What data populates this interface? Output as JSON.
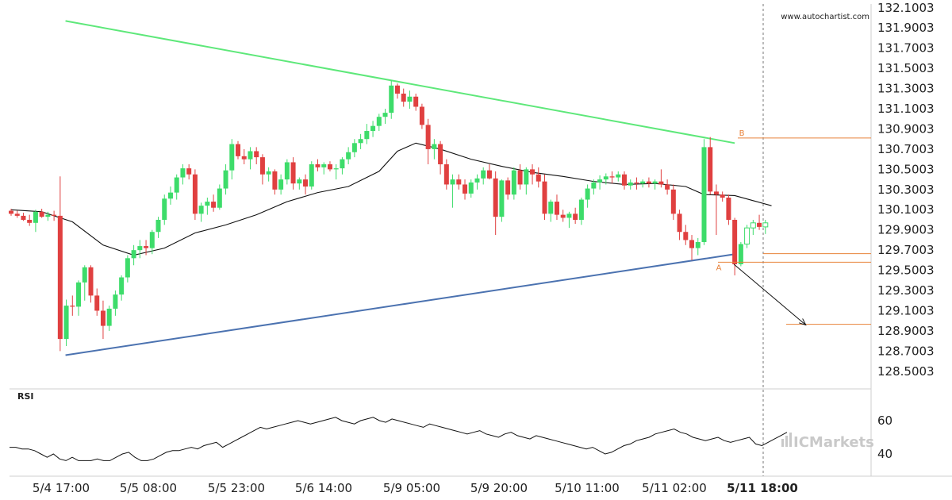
{
  "watermark": "www.autochartist.com",
  "logo": "ICMarkets",
  "rsi_label": "RSI",
  "point_labels": {
    "a": "A",
    "b": "B"
  },
  "colors": {
    "up": "#3ddc6a",
    "down": "#e04040",
    "resistance": "#5ee87a",
    "support": "#4b72b0",
    "level": "#e8823a",
    "ma": "#111111"
  },
  "chart_data": {
    "type": "candlestick",
    "title": "",
    "x_ticks": [
      "5/4 17:00",
      "5/5 08:00",
      "5/5 23:00",
      "5/6 14:00",
      "5/9 05:00",
      "5/9 20:00",
      "5/10 11:00",
      "5/11 02:00",
      "5/11 18:00"
    ],
    "y_ticks": [
      "132.1003",
      "131.9003",
      "131.7003",
      "131.5003",
      "131.3003",
      "131.1003",
      "130.9003",
      "130.7003",
      "130.5003",
      "130.3003",
      "130.1003",
      "129.9003",
      "129.7003",
      "129.5003",
      "129.3003",
      "129.1003",
      "128.9003",
      "128.7003",
      "128.5003"
    ],
    "ylim": [
      128.42,
      132.13
    ],
    "rsi_ticks": [
      "60",
      "40"
    ],
    "candles_ohlc": [
      [
        130.09,
        130.11,
        130.04,
        130.06
      ],
      [
        130.06,
        130.09,
        130.02,
        130.04
      ],
      [
        130.04,
        130.07,
        129.99,
        130.0
      ],
      [
        130.0,
        130.05,
        129.94,
        129.97
      ],
      [
        129.97,
        130.1,
        129.88,
        130.08
      ],
      [
        130.08,
        130.11,
        130.02,
        130.03
      ],
      [
        130.03,
        130.08,
        129.99,
        130.05
      ],
      [
        130.05,
        130.09,
        129.99,
        130.04
      ],
      [
        130.04,
        130.43,
        128.7,
        128.82
      ],
      [
        128.82,
        129.21,
        128.75,
        129.15
      ],
      [
        129.15,
        129.25,
        129.05,
        129.14
      ],
      [
        129.14,
        129.4,
        129.05,
        129.38
      ],
      [
        129.38,
        129.55,
        129.2,
        129.53
      ],
      [
        129.53,
        129.55,
        129.18,
        129.25
      ],
      [
        129.25,
        129.32,
        129.05,
        129.1
      ],
      [
        129.1,
        129.2,
        128.82,
        128.95
      ],
      [
        128.95,
        129.15,
        128.9,
        129.12
      ],
      [
        129.12,
        129.3,
        129.05,
        129.26
      ],
      [
        129.26,
        129.45,
        129.2,
        129.43
      ],
      [
        129.43,
        129.65,
        129.38,
        129.62
      ],
      [
        129.62,
        129.75,
        129.55,
        129.7
      ],
      [
        129.7,
        129.8,
        129.62,
        129.74
      ],
      [
        129.74,
        129.8,
        129.65,
        129.72
      ],
      [
        129.72,
        129.9,
        129.66,
        129.88
      ],
      [
        129.88,
        130.03,
        129.82,
        130.0
      ],
      [
        130.0,
        130.25,
        129.95,
        130.21
      ],
      [
        130.21,
        130.33,
        130.15,
        130.27
      ],
      [
        130.27,
        130.45,
        130.2,
        130.42
      ],
      [
        130.42,
        130.55,
        130.35,
        130.51
      ],
      [
        130.51,
        130.55,
        130.4,
        130.45
      ],
      [
        130.45,
        130.5,
        130.0,
        130.06
      ],
      [
        130.06,
        130.17,
        129.98,
        130.14
      ],
      [
        130.14,
        130.22,
        130.05,
        130.18
      ],
      [
        130.18,
        130.25,
        130.08,
        130.12
      ],
      [
        130.12,
        130.35,
        130.1,
        130.31
      ],
      [
        130.31,
        130.55,
        130.25,
        130.49
      ],
      [
        130.49,
        130.8,
        130.4,
        130.75
      ],
      [
        130.75,
        130.78,
        130.6,
        130.63
      ],
      [
        130.63,
        130.7,
        130.55,
        130.6
      ],
      [
        130.6,
        130.72,
        130.5,
        130.68
      ],
      [
        130.68,
        130.72,
        130.55,
        130.62
      ],
      [
        130.62,
        130.65,
        130.35,
        130.45
      ],
      [
        130.45,
        130.52,
        130.38,
        130.48
      ],
      [
        130.48,
        130.5,
        130.25,
        130.3
      ],
      [
        130.3,
        130.45,
        130.25,
        130.4
      ],
      [
        130.4,
        130.6,
        130.35,
        130.57
      ],
      [
        130.57,
        130.62,
        130.3,
        130.36
      ],
      [
        130.36,
        130.42,
        130.3,
        130.4
      ],
      [
        130.4,
        130.45,
        130.25,
        130.33
      ],
      [
        130.33,
        130.58,
        130.3,
        130.55
      ],
      [
        130.55,
        130.6,
        130.48,
        130.52
      ],
      [
        130.52,
        130.57,
        130.45,
        130.55
      ],
      [
        130.55,
        130.58,
        130.48,
        130.5
      ],
      [
        130.5,
        130.55,
        130.4,
        130.51
      ],
      [
        130.51,
        130.62,
        130.45,
        130.6
      ],
      [
        130.6,
        130.72,
        130.55,
        130.67
      ],
      [
        130.67,
        130.8,
        130.62,
        130.76
      ],
      [
        130.76,
        130.85,
        130.7,
        130.8
      ],
      [
        130.8,
        130.95,
        130.75,
        130.88
      ],
      [
        130.88,
        130.98,
        130.82,
        130.93
      ],
      [
        130.93,
        131.05,
        130.88,
        131.02
      ],
      [
        131.02,
        131.1,
        130.95,
        131.06
      ],
      [
        131.06,
        131.38,
        131.0,
        131.33
      ],
      [
        131.33,
        131.35,
        131.2,
        131.25
      ],
      [
        131.25,
        131.3,
        131.12,
        131.17
      ],
      [
        131.17,
        131.28,
        131.1,
        131.22
      ],
      [
        131.22,
        131.25,
        131.08,
        131.12
      ],
      [
        131.12,
        131.15,
        130.9,
        130.94
      ],
      [
        130.94,
        131.0,
        130.55,
        130.7
      ],
      [
        130.7,
        130.8,
        130.6,
        130.75
      ],
      [
        130.75,
        130.78,
        130.45,
        130.55
      ],
      [
        130.55,
        130.6,
        130.3,
        130.35
      ],
      [
        130.35,
        130.45,
        130.12,
        130.4
      ],
      [
        130.4,
        130.45,
        130.3,
        130.35
      ],
      [
        130.35,
        130.4,
        130.2,
        130.26
      ],
      [
        130.26,
        130.4,
        130.22,
        130.37
      ],
      [
        130.37,
        130.45,
        130.3,
        130.41
      ],
      [
        130.41,
        130.52,
        130.35,
        130.49
      ],
      [
        130.49,
        130.55,
        130.4,
        130.41
      ],
      [
        130.41,
        130.48,
        129.85,
        130.03
      ],
      [
        130.03,
        130.4,
        129.98,
        130.39
      ],
      [
        130.39,
        130.42,
        130.2,
        130.25
      ],
      [
        130.25,
        130.52,
        130.2,
        130.49
      ],
      [
        130.49,
        130.55,
        130.3,
        130.35
      ],
      [
        130.35,
        130.52,
        130.25,
        130.5
      ],
      [
        130.5,
        130.55,
        130.35,
        130.45
      ],
      [
        130.45,
        130.52,
        130.32,
        130.38
      ],
      [
        130.38,
        130.45,
        130.0,
        130.06
      ],
      [
        130.06,
        130.2,
        129.98,
        130.18
      ],
      [
        130.18,
        130.25,
        130.0,
        130.05
      ],
      [
        130.05,
        130.1,
        129.98,
        130.02
      ],
      [
        130.02,
        130.08,
        129.92,
        130.06
      ],
      [
        130.06,
        130.12,
        129.96,
        130.0
      ],
      [
        130.0,
        130.22,
        129.95,
        130.2
      ],
      [
        130.2,
        130.35,
        130.12,
        130.31
      ],
      [
        130.31,
        130.4,
        130.25,
        130.37
      ],
      [
        130.37,
        130.44,
        130.3,
        130.4
      ],
      [
        130.4,
        130.46,
        130.35,
        130.43
      ],
      [
        130.43,
        130.48,
        130.36,
        130.42
      ],
      [
        130.42,
        130.48,
        130.38,
        130.45
      ],
      [
        130.45,
        130.48,
        130.3,
        130.34
      ],
      [
        130.34,
        130.4,
        130.3,
        130.37
      ],
      [
        130.37,
        130.42,
        130.3,
        130.36
      ],
      [
        130.36,
        130.4,
        130.32,
        130.38
      ],
      [
        130.38,
        130.42,
        130.32,
        130.36
      ],
      [
        130.36,
        130.4,
        130.3,
        130.38
      ],
      [
        130.38,
        130.5,
        130.32,
        130.35
      ],
      [
        130.35,
        130.4,
        130.25,
        130.3
      ],
      [
        130.3,
        130.35,
        130.0,
        130.06
      ],
      [
        130.06,
        130.1,
        129.8,
        129.88
      ],
      [
        129.88,
        129.95,
        129.75,
        129.8
      ],
      [
        129.8,
        129.85,
        129.6,
        129.72
      ],
      [
        129.72,
        129.82,
        129.65,
        129.78
      ],
      [
        129.78,
        130.8,
        129.75,
        130.72
      ],
      [
        130.72,
        130.82,
        130.25,
        130.28
      ],
      [
        130.28,
        130.35,
        129.85,
        130.25
      ],
      [
        130.25,
        130.28,
        130.18,
        130.22
      ],
      [
        130.22,
        130.25,
        129.95,
        130.0
      ],
      [
        130.0,
        130.02,
        129.45,
        129.56
      ],
      [
        129.56,
        129.78,
        129.54,
        129.76
      ],
      [
        129.76,
        129.95,
        129.72,
        129.92
      ],
      [
        129.92,
        130.0,
        129.85,
        129.97
      ],
      [
        129.97,
        130.05,
        129.9,
        129.93
      ],
      [
        129.93,
        130.0,
        129.86,
        129.97
      ]
    ],
    "moving_average": [
      [
        0,
        130.1
      ],
      [
        5,
        130.08
      ],
      [
        10,
        129.98
      ],
      [
        15,
        129.75
      ],
      [
        20,
        129.65
      ],
      [
        25,
        129.72
      ],
      [
        30,
        129.87
      ],
      [
        35,
        129.95
      ],
      [
        40,
        130.05
      ],
      [
        45,
        130.18
      ],
      [
        50,
        130.27
      ],
      [
        55,
        130.33
      ],
      [
        60,
        130.48
      ],
      [
        63,
        130.68
      ],
      [
        66,
        130.76
      ],
      [
        70,
        130.7
      ],
      [
        75,
        130.6
      ],
      [
        80,
        130.53
      ],
      [
        85,
        130.47
      ],
      [
        90,
        130.43
      ],
      [
        95,
        130.38
      ],
      [
        100,
        130.35
      ],
      [
        105,
        130.36
      ],
      [
        110,
        130.33
      ],
      [
        113,
        130.25
      ],
      [
        118,
        130.24
      ],
      [
        121,
        130.19
      ],
      [
        124,
        130.14
      ]
    ],
    "resistance_line": {
      "from": [
        9,
        131.97
      ],
      "to": [
        118,
        130.76
      ]
    },
    "support_line": {
      "from": [
        9,
        128.66
      ],
      "to": [
        118,
        129.66
      ]
    },
    "levels": {
      "b": 130.81,
      "upper": 129.665,
      "a": 129.58,
      "target": 128.965
    },
    "projection_arrow": {
      "from": [
        118,
        129.56
      ],
      "to": [
        127,
        128.99
      ]
    },
    "rsi_values": [
      44,
      44,
      43,
      43,
      42,
      40,
      38,
      40,
      37,
      36,
      38,
      36,
      36,
      36,
      37,
      36,
      36,
      38,
      40,
      41,
      38,
      36,
      36,
      37,
      39,
      41,
      42,
      42,
      43,
      44,
      43,
      45,
      46,
      47,
      44,
      46,
      48,
      50,
      52,
      54,
      56,
      55,
      56,
      57,
      58,
      59,
      60,
      59,
      58,
      59,
      60,
      61,
      62,
      60,
      59,
      58,
      60,
      61,
      62,
      60,
      59,
      61,
      60,
      59,
      58,
      57,
      56,
      58,
      57,
      56,
      55,
      54,
      53,
      52,
      53,
      54,
      52,
      51,
      50,
      52,
      53,
      51,
      50,
      49,
      51,
      50,
      49,
      48,
      47,
      46,
      45,
      44,
      43,
      44,
      42,
      40,
      41,
      43,
      45,
      46,
      48,
      49,
      50,
      52,
      53,
      54,
      55,
      53,
      52,
      50,
      49,
      48,
      49,
      50,
      48,
      47,
      48,
      49,
      50,
      46,
      45,
      47,
      49,
      51,
      53
    ]
  }
}
